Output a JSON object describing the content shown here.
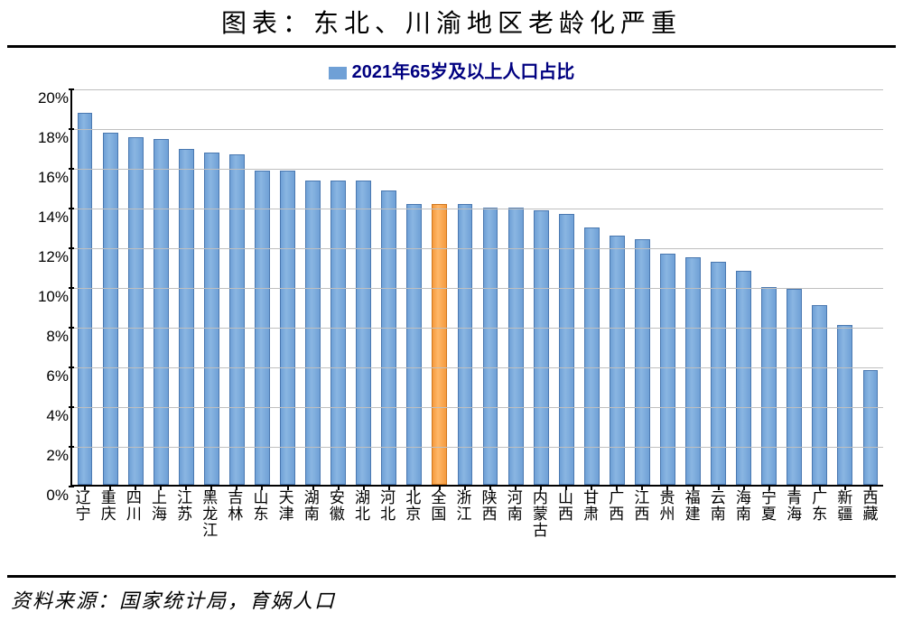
{
  "title": "图表：东北、川渝地区老龄化严重",
  "legend_label": "2021年65岁及以上人口占比",
  "source": "资料来源：国家统计局，育娲人口",
  "chart": {
    "type": "bar",
    "y_axis": {
      "min": 0,
      "max": 20,
      "step": 2,
      "format": "percent"
    },
    "bar_color": "#6fa0d6",
    "highlight_color": "#f59a3d",
    "grid_color": "#bfbfbf",
    "background_color": "#ffffff",
    "legend_swatch_color": "#6fa0d6",
    "title_fontsize": 28,
    "legend_fontsize": 20,
    "axis_fontsize": 17,
    "bar_width_ratio": 0.6,
    "categories": [
      {
        "label": "辽宁",
        "value": 18.8,
        "highlight": false
      },
      {
        "label": "重庆",
        "value": 17.8,
        "highlight": false
      },
      {
        "label": "四川",
        "value": 17.6,
        "highlight": false
      },
      {
        "label": "上海",
        "value": 17.5,
        "highlight": false
      },
      {
        "label": "江苏",
        "value": 17.0,
        "highlight": false
      },
      {
        "label": "黑龙江",
        "value": 16.8,
        "highlight": false
      },
      {
        "label": "吉林",
        "value": 16.7,
        "highlight": false
      },
      {
        "label": "山东",
        "value": 15.9,
        "highlight": false
      },
      {
        "label": "天津",
        "value": 15.9,
        "highlight": false
      },
      {
        "label": "湖南",
        "value": 15.4,
        "highlight": false
      },
      {
        "label": "安徽",
        "value": 15.4,
        "highlight": false
      },
      {
        "label": "湖北",
        "value": 15.4,
        "highlight": false
      },
      {
        "label": "河北",
        "value": 14.9,
        "highlight": false
      },
      {
        "label": "北京",
        "value": 14.2,
        "highlight": false
      },
      {
        "label": "全国",
        "value": 14.2,
        "highlight": true
      },
      {
        "label": "浙江",
        "value": 14.2,
        "highlight": false
      },
      {
        "label": "陕西",
        "value": 14.0,
        "highlight": false
      },
      {
        "label": "河南",
        "value": 14.0,
        "highlight": false
      },
      {
        "label": "内蒙古",
        "value": 13.9,
        "highlight": false
      },
      {
        "label": "山西",
        "value": 13.7,
        "highlight": false
      },
      {
        "label": "甘肃",
        "value": 13.0,
        "highlight": false
      },
      {
        "label": "广西",
        "value": 12.6,
        "highlight": false
      },
      {
        "label": "江西",
        "value": 12.4,
        "highlight": false
      },
      {
        "label": "贵州",
        "value": 11.7,
        "highlight": false
      },
      {
        "label": "福建",
        "value": 11.5,
        "highlight": false
      },
      {
        "label": "云南",
        "value": 11.3,
        "highlight": false
      },
      {
        "label": "海南",
        "value": 10.8,
        "highlight": false
      },
      {
        "label": "宁夏",
        "value": 10.0,
        "highlight": false
      },
      {
        "label": "青海",
        "value": 9.9,
        "highlight": false
      },
      {
        "label": "广东",
        "value": 9.1,
        "highlight": false
      },
      {
        "label": "新疆",
        "value": 8.1,
        "highlight": false
      },
      {
        "label": "西藏",
        "value": 5.8,
        "highlight": false
      }
    ]
  }
}
